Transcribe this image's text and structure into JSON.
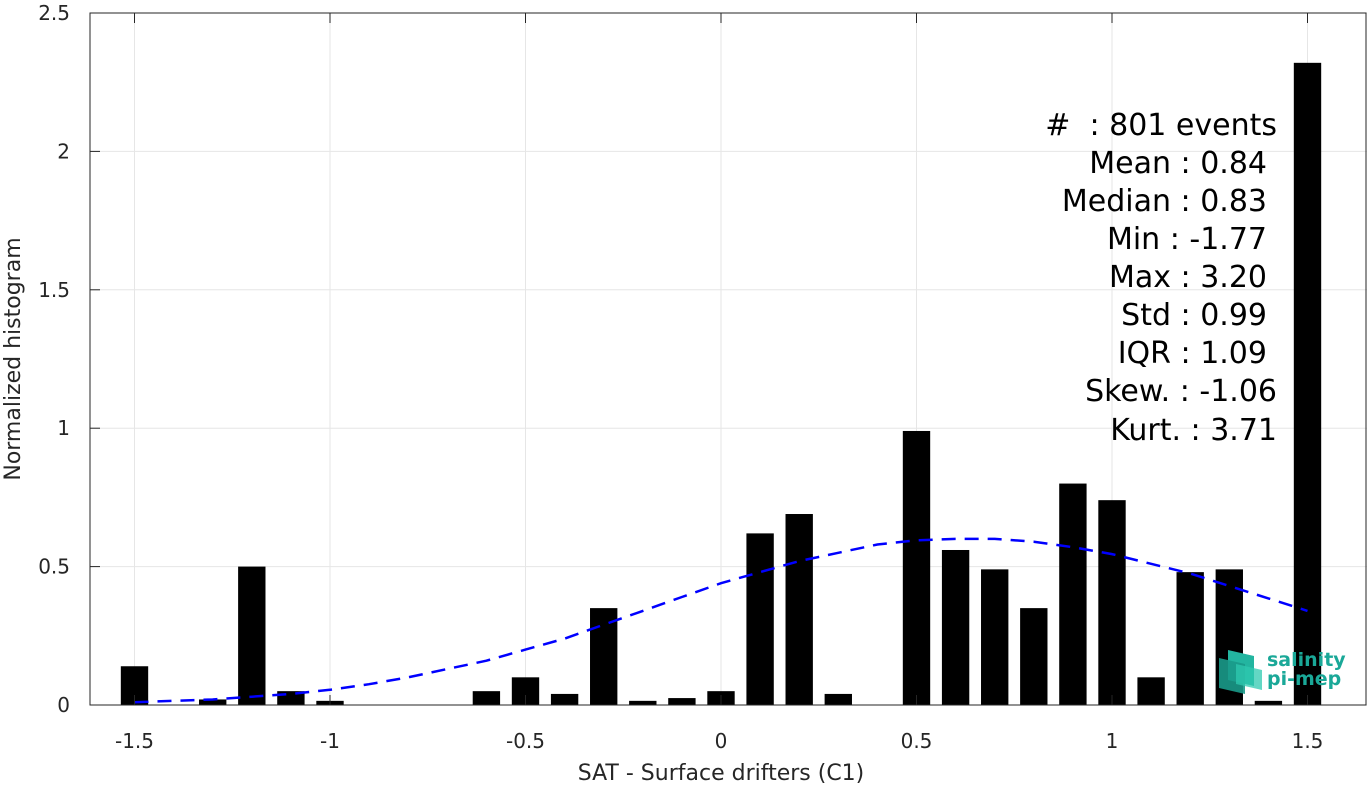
{
  "chart_data": {
    "type": "bar",
    "title": "",
    "xlabel": "SAT - Surface drifters (C1)",
    "ylabel": "Normalized histogram",
    "xlim": [
      -1.65,
      1.65
    ],
    "ylim": [
      0,
      2.5
    ],
    "xticks": [
      -1.5,
      -1,
      -0.5,
      0,
      0.5,
      1,
      1.5
    ],
    "xtick_labels": [
      "-1.5",
      "-1",
      "-0.5",
      "0",
      "0.5",
      "1",
      "1.5"
    ],
    "yticks": [
      0,
      0.5,
      1,
      1.5,
      2,
      2.5
    ],
    "ytick_labels": [
      "0",
      "0.5",
      "1",
      "1.5",
      "2",
      "2.5"
    ],
    "grid": true,
    "bar_width": 0.07,
    "colors": {
      "bars": "#000000",
      "fit": "#0000ff",
      "grid": "#e6e6e6",
      "axes": "#262626"
    },
    "x": [
      -1.5,
      -1.4,
      -1.3,
      -1.2,
      -1.1,
      -1.0,
      -0.9,
      -0.8,
      -0.7,
      -0.6,
      -0.5,
      -0.4,
      -0.3,
      -0.2,
      -0.1,
      0.0,
      0.1,
      0.2,
      0.3,
      0.4,
      0.5,
      0.6,
      0.7,
      0.8,
      0.9,
      1.0,
      1.1,
      1.2,
      1.3,
      1.4,
      1.5
    ],
    "values": [
      0.14,
      0.0,
      0.02,
      0.5,
      0.05,
      0.015,
      0.0,
      0.0,
      0.0,
      0.05,
      0.1,
      0.04,
      0.35,
      0.015,
      0.025,
      0.05,
      0.62,
      0.69,
      0.04,
      0.0,
      0.99,
      0.56,
      0.49,
      0.35,
      0.8,
      0.74,
      0.1,
      0.48,
      0.49,
      0.015,
      2.32
    ],
    "fit": {
      "style": "dashed",
      "x": [
        -1.5,
        -1.4,
        -1.3,
        -1.2,
        -1.1,
        -1.0,
        -0.9,
        -0.8,
        -0.7,
        -0.6,
        -0.5,
        -0.4,
        -0.3,
        -0.2,
        -0.1,
        0.0,
        0.1,
        0.2,
        0.3,
        0.4,
        0.5,
        0.6,
        0.7,
        0.8,
        0.9,
        1.0,
        1.1,
        1.2,
        1.3,
        1.4,
        1.5
      ],
      "y": [
        0.01,
        0.015,
        0.02,
        0.03,
        0.04,
        0.055,
        0.075,
        0.1,
        0.13,
        0.16,
        0.2,
        0.24,
        0.29,
        0.34,
        0.39,
        0.44,
        0.48,
        0.52,
        0.55,
        0.58,
        0.595,
        0.6,
        0.6,
        0.59,
        0.57,
        0.545,
        0.51,
        0.475,
        0.43,
        0.385,
        0.34
      ]
    }
  },
  "stats": {
    "lines": [
      "#  : 801 events",
      "Mean : 0.84",
      "Median : 0.83",
      "Min : -1.77",
      "Max : 3.20",
      "Std : 0.99",
      "IQR : 1.09",
      "Skew. : -1.06",
      "Kurt. : 3.71"
    ]
  },
  "logo": {
    "line1": "salinity",
    "line2": "pi-mep",
    "color": "#1aa898"
  }
}
